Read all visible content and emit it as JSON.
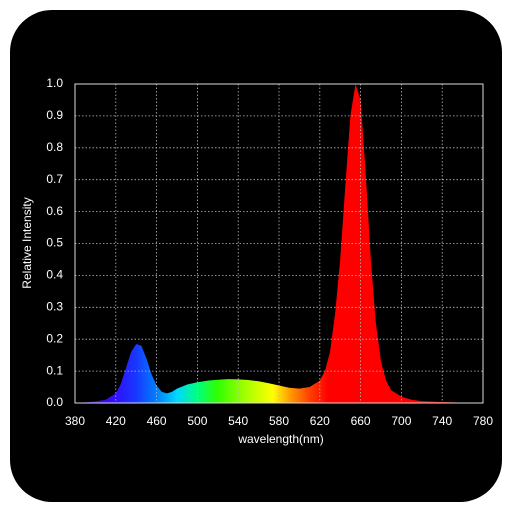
{
  "chart_data": {
    "type": "area",
    "x_label": "wavelength(nm)",
    "y_label": "Relative Intensity",
    "x": [
      380,
      390,
      400,
      410,
      420,
      425,
      430,
      435,
      440,
      445,
      450,
      455,
      460,
      465,
      470,
      475,
      480,
      490,
      500,
      510,
      520,
      530,
      540,
      550,
      560,
      570,
      580,
      590,
      600,
      610,
      620,
      625,
      630,
      635,
      640,
      645,
      650,
      655,
      660,
      665,
      670,
      675,
      680,
      685,
      690,
      700,
      710,
      720,
      740,
      760,
      780
    ],
    "values": [
      0,
      0.002,
      0.005,
      0.01,
      0.03,
      0.06,
      0.11,
      0.16,
      0.185,
      0.18,
      0.14,
      0.09,
      0.055,
      0.035,
      0.03,
      0.035,
      0.045,
      0.058,
      0.065,
      0.07,
      0.073,
      0.075,
      0.074,
      0.072,
      0.068,
      0.062,
      0.055,
      0.048,
      0.045,
      0.05,
      0.07,
      0.1,
      0.16,
      0.28,
      0.45,
      0.68,
      0.9,
      1.0,
      0.95,
      0.72,
      0.45,
      0.25,
      0.13,
      0.07,
      0.04,
      0.02,
      0.01,
      0.006,
      0.003,
      0.001,
      0
    ],
    "xlim": [
      380,
      780
    ],
    "xticks": [
      380,
      420,
      460,
      500,
      540,
      580,
      620,
      660,
      700,
      740,
      780
    ],
    "ylim": [
      0,
      1
    ],
    "yticks": [
      {
        "value": 0,
        "label": "0.0"
      },
      0.1,
      0.2,
      0.3,
      0.4,
      0.5,
      0.6,
      0.7,
      0.8,
      0.9,
      {
        "value": 1,
        "label": "1.0"
      }
    ],
    "grid": true
  }
}
